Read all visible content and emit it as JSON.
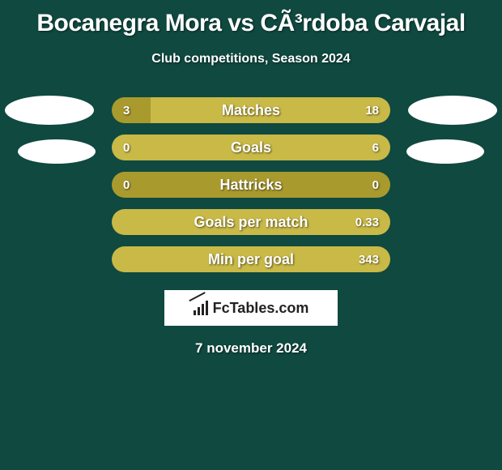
{
  "title": "Bocanegra Mora vs CÃ³rdoba Carvajal",
  "subtitle": "Club competitions, Season 2024",
  "colors": {
    "background": "#0f4940",
    "bar_left": "#a99a2e",
    "bar_right": "#c9b947",
    "ellipse": "#ffffff",
    "text": "#ffffff"
  },
  "rows": [
    {
      "label": "Matches",
      "left": "3",
      "right": "18",
      "left_pct": 14,
      "show_ellipse": true,
      "ellipse_size": "big"
    },
    {
      "label": "Goals",
      "left": "0",
      "right": "6",
      "left_pct": 0,
      "show_ellipse": true,
      "ellipse_size": "small"
    },
    {
      "label": "Hattricks",
      "left": "0",
      "right": "0",
      "left_pct": 100,
      "show_ellipse": false
    },
    {
      "label": "Goals per match",
      "left": "",
      "right": "0.33",
      "left_pct": 0,
      "show_ellipse": false
    },
    {
      "label": "Min per goal",
      "left": "",
      "right": "343",
      "left_pct": 0,
      "show_ellipse": false
    }
  ],
  "branding": "FcTables.com",
  "date": "7 november 2024"
}
